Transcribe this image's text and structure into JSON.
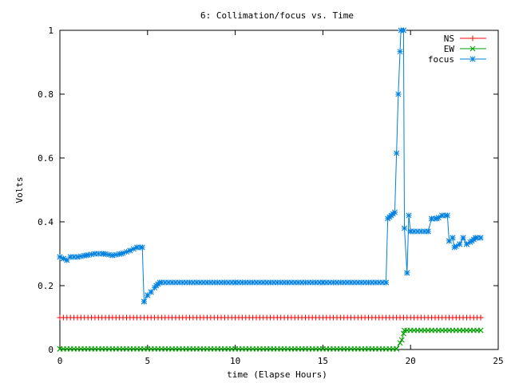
{
  "chart_data": {
    "type": "line",
    "title": "6: Collimation/focus vs. Time",
    "xlabel": "time (Elapse Hours)",
    "ylabel": "Volts",
    "xlim": [
      0,
      25
    ],
    "ylim": [
      0,
      1
    ],
    "xticks": [
      "0",
      "5",
      "10",
      "15",
      "20",
      "25"
    ],
    "yticks": [
      "0",
      "0.2",
      "0.4",
      "0.6",
      "0.8",
      "1"
    ],
    "legend_position": "top-right",
    "grid": false,
    "series": [
      {
        "name": "NS",
        "color": "#ff0000",
        "marker": "plus",
        "points": [
          [
            0,
            0.1
          ],
          [
            24,
            0.1
          ]
        ],
        "marker_step": 0.2
      },
      {
        "name": "EW",
        "color": "#00a000",
        "marker": "cross",
        "points": [
          [
            0,
            0.002
          ],
          [
            19.2,
            0.002
          ],
          [
            19.5,
            0.03
          ],
          [
            19.65,
            0.06
          ],
          [
            24,
            0.06
          ]
        ],
        "marker_step": 0.2
      },
      {
        "name": "focus",
        "color": "#0080e0",
        "marker": "star",
        "points": [
          [
            0,
            0.29
          ],
          [
            0.2,
            0.285
          ],
          [
            0.4,
            0.28
          ],
          [
            0.6,
            0.29
          ],
          [
            1.0,
            0.29
          ],
          [
            1.5,
            0.295
          ],
          [
            2.0,
            0.3
          ],
          [
            2.5,
            0.3
          ],
          [
            3.0,
            0.295
          ],
          [
            3.5,
            0.3
          ],
          [
            4.0,
            0.31
          ],
          [
            4.4,
            0.32
          ],
          [
            4.7,
            0.32
          ],
          [
            4.8,
            0.15
          ],
          [
            5.0,
            0.17
          ],
          [
            5.2,
            0.18
          ],
          [
            5.5,
            0.2
          ],
          [
            5.7,
            0.21
          ],
          [
            10,
            0.21
          ],
          [
            15,
            0.21
          ],
          [
            18.6,
            0.21
          ],
          [
            18.7,
            0.41
          ],
          [
            18.9,
            0.42
          ],
          [
            19.1,
            0.43
          ],
          [
            19.3,
            0.8
          ],
          [
            19.45,
            1.0
          ],
          [
            19.6,
            1.0
          ],
          [
            19.65,
            0.38
          ],
          [
            19.8,
            0.24
          ],
          [
            19.9,
            0.42
          ],
          [
            20.0,
            0.37
          ],
          [
            21.0,
            0.37
          ],
          [
            21.2,
            0.41
          ],
          [
            21.5,
            0.41
          ],
          [
            21.8,
            0.42
          ],
          [
            22.1,
            0.42
          ],
          [
            22.2,
            0.34
          ],
          [
            22.4,
            0.35
          ],
          [
            22.5,
            0.32
          ],
          [
            22.8,
            0.33
          ],
          [
            23.0,
            0.35
          ],
          [
            23.2,
            0.33
          ],
          [
            23.5,
            0.34
          ],
          [
            23.7,
            0.35
          ],
          [
            24.0,
            0.35
          ]
        ],
        "marker_step": 0.2
      }
    ]
  }
}
